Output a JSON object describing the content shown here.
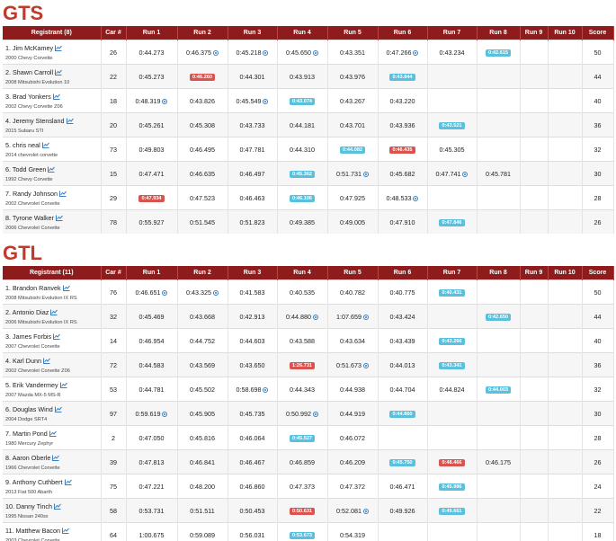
{
  "sections": [
    {
      "title": "GTS",
      "columns": [
        "Registrant (8)",
        "Car #",
        "Run 1",
        "Run 2",
        "Run 3",
        "Run 4",
        "Run 5",
        "Run 6",
        "Run 7",
        "Run 8",
        "Run 9",
        "Run 10",
        "Score"
      ],
      "rows": [
        {
          "name": "1. Jim McKamey",
          "car": "2000 Chevy Corvette",
          "number": 26,
          "runs": [
            {
              "time": "0:44.273"
            },
            {
              "time": "0:46.375",
              "mark": "cone"
            },
            {
              "time": "0:45.218",
              "mark": "cone"
            },
            {
              "time": "0:45.650",
              "mark": "cone"
            },
            {
              "time": "0:43.351"
            },
            {
              "time": "0:47.266",
              "mark": "cone"
            },
            {
              "time": "0:43.234"
            },
            {
              "time": "0:42.615",
              "mark": "best"
            },
            null,
            null
          ],
          "score": 50
        },
        {
          "name": "2. Shawn Carroll",
          "car": "2008 Mitsubishi Evolution 10",
          "number": 22,
          "runs": [
            {
              "time": "0:45.273"
            },
            {
              "time": "0:46.260",
              "mark": "bad"
            },
            {
              "time": "0:44.301"
            },
            {
              "time": "0:43.913"
            },
            {
              "time": "0:43.976"
            },
            {
              "time": "0:43.844",
              "mark": "best"
            },
            null,
            null,
            null,
            null
          ],
          "score": 44
        },
        {
          "name": "3. Brad Yonkers",
          "car": "2002 Chevy Corvette Z06",
          "number": 18,
          "runs": [
            {
              "time": "0:48.319",
              "mark": "cone"
            },
            {
              "time": "0:43.826"
            },
            {
              "time": "0:45.549",
              "mark": "cone"
            },
            {
              "time": "0:43.074",
              "mark": "best"
            },
            {
              "time": "0:43.267"
            },
            {
              "time": "0:43.220"
            },
            null,
            null,
            null,
            null
          ],
          "score": 40
        },
        {
          "name": "4. Jeremy Stensland",
          "car": "2015 Subaru STI",
          "number": 20,
          "runs": [
            {
              "time": "0:45.261"
            },
            {
              "time": "0:45.308"
            },
            {
              "time": "0:43.733"
            },
            {
              "time": "0:44.181"
            },
            {
              "time": "0:43.701"
            },
            {
              "time": "0:43.936"
            },
            {
              "time": "0:43.521",
              "mark": "best"
            },
            null,
            null,
            null
          ],
          "score": 36
        },
        {
          "name": "5. chris neal",
          "car": "2014 chevrolet corvette",
          "number": 73,
          "runs": [
            {
              "time": "0:49.803"
            },
            {
              "time": "0:46.495"
            },
            {
              "time": "0:47.781"
            },
            {
              "time": "0:44.310"
            },
            {
              "time": "0:44.082",
              "mark": "best"
            },
            {
              "time": "0:46.435",
              "mark": "bad"
            },
            {
              "time": "0:45.305"
            },
            null,
            null,
            null
          ],
          "score": 32
        },
        {
          "name": "6. Todd Green",
          "car": "1992 Chevy Corvette",
          "number": 15,
          "runs": [
            {
              "time": "0:47.471"
            },
            {
              "time": "0:46.635"
            },
            {
              "time": "0:46.497"
            },
            {
              "time": "0:45.362",
              "mark": "best"
            },
            {
              "time": "0:51.731",
              "mark": "cone"
            },
            {
              "time": "0:45.682"
            },
            {
              "time": "0:47.741",
              "mark": "cone"
            },
            {
              "time": "0:45.781"
            },
            null,
            null
          ],
          "score": 30
        },
        {
          "name": "7. Randy Johnson",
          "car": "2002 Chevrolet Corvette",
          "number": 29,
          "runs": [
            {
              "time": "0:47.934",
              "mark": "bad"
            },
            {
              "time": "0:47.523"
            },
            {
              "time": "0:46.463"
            },
            {
              "time": "0:46.106",
              "mark": "best"
            },
            {
              "time": "0:47.925"
            },
            {
              "time": "0:48.533",
              "mark": "cone"
            },
            null,
            null,
            null,
            null
          ],
          "score": 28
        },
        {
          "name": "8. Tyrone Walker",
          "car": "2006 Chevrolet Corvette",
          "number": 78,
          "runs": [
            {
              "time": "0:55.927"
            },
            {
              "time": "0:51.545"
            },
            {
              "time": "0:51.823"
            },
            {
              "time": "0:49.385"
            },
            {
              "time": "0:49.005"
            },
            {
              "time": "0:47.910"
            },
            {
              "time": "0:47.846",
              "mark": "best"
            },
            null,
            null,
            null
          ],
          "score": 26
        }
      ]
    },
    {
      "title": "GTL",
      "columns": [
        "Registrant (11)",
        "Car #",
        "Run 1",
        "Run 2",
        "Run 3",
        "Run 4",
        "Run 5",
        "Run 6",
        "Run 7",
        "Run 8",
        "Run 9",
        "Run 10",
        "Score"
      ],
      "rows": [
        {
          "name": "1. Brandon Ranvek",
          "car": "2008 Mitsubishi Evolution IX RS",
          "number": 76,
          "runs": [
            {
              "time": "0:46.651",
              "mark": "cone"
            },
            {
              "time": "0:43.325",
              "mark": "cone"
            },
            {
              "time": "0:41.583"
            },
            {
              "time": "0:40.535"
            },
            {
              "time": "0:40.782"
            },
            {
              "time": "0:40.775"
            },
            {
              "time": "0:40.431",
              "mark": "best"
            },
            null,
            null,
            null
          ],
          "score": 50
        },
        {
          "name": "2. Antonio Diaz",
          "car": "2006 Mitsubishi Evolution IX RS",
          "number": 32,
          "runs": [
            {
              "time": "0:45.469"
            },
            {
              "time": "0:43.668"
            },
            {
              "time": "0:42.913"
            },
            {
              "time": "0:44.880",
              "mark": "cone"
            },
            {
              "time": "1:07.659",
              "mark": "cone"
            },
            {
              "time": "0:43.424"
            },
            null,
            {
              "time": "0:42.650",
              "mark": "best"
            },
            null,
            null
          ],
          "score": 44
        },
        {
          "name": "3. James Forbis",
          "car": "2007 Chevrolet Corvette",
          "number": 14,
          "runs": [
            {
              "time": "0:46.954"
            },
            {
              "time": "0:44.752"
            },
            {
              "time": "0:44.603"
            },
            {
              "time": "0:43.588"
            },
            {
              "time": "0:43.634"
            },
            {
              "time": "0:43.439"
            },
            {
              "time": "0:43.266",
              "mark": "best"
            },
            null,
            null,
            null
          ],
          "score": 40
        },
        {
          "name": "4. Karl Dunn",
          "car": "2002 Chevrolet Corvette Z06",
          "number": 72,
          "runs": [
            {
              "time": "0:44.583"
            },
            {
              "time": "0:43.569"
            },
            {
              "time": "0:43.650"
            },
            {
              "time": "1:26.731",
              "mark": "bad"
            },
            {
              "time": "0:51.673",
              "mark": "cone"
            },
            {
              "time": "0:44.013"
            },
            {
              "time": "0:43.341",
              "mark": "best"
            },
            null,
            null,
            null
          ],
          "score": 36
        },
        {
          "name": "5. Erik Vandermey",
          "car": "2007 Mazda MX-5 MS-R",
          "number": 53,
          "runs": [
            {
              "time": "0:44.781"
            },
            {
              "time": "0:45.502"
            },
            {
              "time": "0:58.698",
              "mark": "cone"
            },
            {
              "time": "0:44.343"
            },
            {
              "time": "0:44.938"
            },
            {
              "time": "0:44.704"
            },
            {
              "time": "0:44.824"
            },
            {
              "time": "0:44.003",
              "mark": "best"
            },
            null,
            null
          ],
          "score": 32
        },
        {
          "name": "6. Douglas Wind",
          "car": "2004 Dodge SRT4",
          "number": 97,
          "runs": [
            {
              "time": "0:59.619",
              "mark": "cone"
            },
            {
              "time": "0:45.905"
            },
            {
              "time": "0:45.735"
            },
            {
              "time": "0:50.992",
              "mark": "cone"
            },
            {
              "time": "0:44.919"
            },
            {
              "time": "0:44.860",
              "mark": "best"
            },
            null,
            null,
            null,
            null
          ],
          "score": 30
        },
        {
          "name": "7. Martin Pond",
          "car": "1980 Mercury Zephyr",
          "number": 2,
          "runs": [
            {
              "time": "0:47.050"
            },
            {
              "time": "0:45.816"
            },
            {
              "time": "0:46.064"
            },
            {
              "time": "0:45.527",
              "mark": "best"
            },
            {
              "time": "0:46.072"
            },
            null,
            null,
            null,
            null,
            null
          ],
          "score": 28
        },
        {
          "name": "8. Aaron Oberle",
          "car": "1966 Chevrolet Corvette",
          "number": 39,
          "runs": [
            {
              "time": "0:47.813"
            },
            {
              "time": "0:46.841"
            },
            {
              "time": "0:46.467"
            },
            {
              "time": "0:46.859"
            },
            {
              "time": "0:46.209"
            },
            {
              "time": "0:45.750",
              "mark": "best"
            },
            {
              "time": "0:48.466",
              "mark": "bad"
            },
            {
              "time": "0:46.175"
            },
            null,
            null
          ],
          "score": 26
        },
        {
          "name": "9. Anthony Cuthbert",
          "car": "2013 Fiat 500 Abarth",
          "number": 75,
          "runs": [
            {
              "time": "0:47.221"
            },
            {
              "time": "0:48.200"
            },
            {
              "time": "0:46.860"
            },
            {
              "time": "0:47.373"
            },
            {
              "time": "0:47.372"
            },
            {
              "time": "0:46.471"
            },
            {
              "time": "0:45.986",
              "mark": "best"
            },
            null,
            null,
            null
          ],
          "score": 24
        },
        {
          "name": "10. Danny Tinch",
          "car": "1995 Nissan 240sx",
          "number": 58,
          "runs": [
            {
              "time": "0:53.731"
            },
            {
              "time": "0:51.511"
            },
            {
              "time": "0:50.453"
            },
            {
              "time": "0:50.631",
              "mark": "bad"
            },
            {
              "time": "0:52.081",
              "mark": "cone"
            },
            {
              "time": "0:49.926"
            },
            {
              "time": "0:49.661",
              "mark": "best"
            },
            null,
            null,
            null
          ],
          "score": 22
        },
        {
          "name": "11. Matthew Bacon",
          "car": "2003 Chevrolet Corvette",
          "number": 64,
          "runs": [
            {
              "time": "1:00.675"
            },
            {
              "time": "0:59.089"
            },
            {
              "time": "0:56.031"
            },
            {
              "time": "0:53.673",
              "mark": "best"
            },
            {
              "time": "0:54.319"
            },
            null,
            null,
            null,
            null,
            null
          ],
          "score": 18
        }
      ]
    }
  ]
}
